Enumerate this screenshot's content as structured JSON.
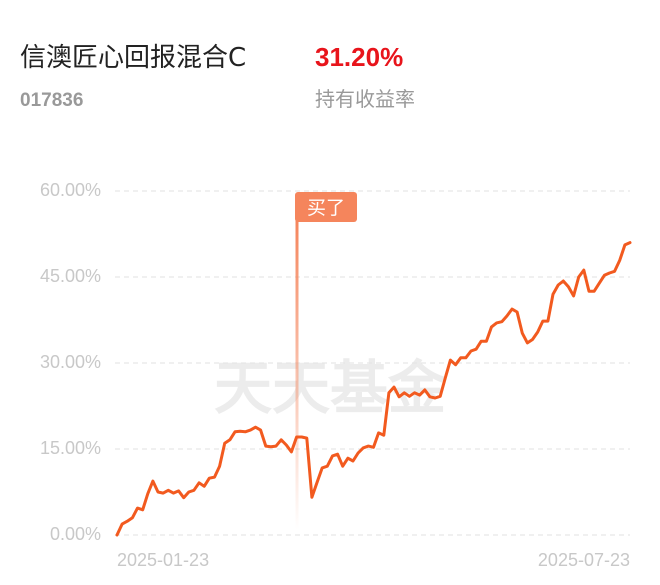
{
  "header": {
    "title": "信澳匠心回报混合C",
    "code": "017836",
    "return_value": "31.20%",
    "return_label": "持有收益率"
  },
  "chart_data": {
    "type": "line",
    "watermark": "天天基金",
    "annotation": "买了",
    "categories": [
      "2025-01-23",
      null,
      null,
      null,
      null,
      null,
      null,
      null,
      null,
      null,
      null,
      null,
      null,
      null,
      null,
      null,
      null,
      null,
      null,
      null,
      null,
      null,
      null,
      null,
      null,
      null,
      null,
      null,
      null,
      null,
      null,
      null,
      null,
      null,
      null,
      null,
      null,
      null,
      null,
      null,
      null,
      null,
      null,
      null,
      null,
      null,
      null,
      null,
      null,
      null,
      null,
      null,
      null,
      null,
      null,
      null,
      null,
      null,
      null,
      null,
      null,
      null,
      null,
      null,
      null,
      null,
      null,
      null,
      null,
      null,
      null,
      null,
      null,
      null,
      null,
      null,
      null,
      null,
      null,
      null,
      null,
      null,
      null,
      null,
      null,
      null,
      null,
      null,
      null,
      null,
      null,
      null,
      null,
      null,
      null,
      null,
      null,
      null,
      null,
      null,
      "2025-07-23"
    ],
    "series": [
      {
        "color": "#f25a1f",
        "values": [
          0,
          1.9,
          2.4,
          3,
          4.7,
          4.4,
          7.2,
          9.4,
          7.5,
          7.3,
          7.8,
          7.3,
          7.7,
          6.5,
          7.5,
          7.8,
          9.1,
          8.5,
          9.9,
          10.1,
          12,
          16,
          16.6,
          18,
          18.1,
          18,
          18.3,
          18.8,
          18.3,
          15.5,
          15.4,
          15.5,
          16.6,
          15.7,
          14.5,
          17.1,
          17.1,
          16.9,
          6.6,
          9.2,
          11.7,
          12,
          13.8,
          14.1,
          12,
          13.4,
          12.9,
          14.3,
          15.2,
          15.5,
          15.3,
          17.8,
          17.4,
          24.8,
          25.8,
          24.1,
          24.8,
          24.2,
          24.8,
          24.4,
          25.3,
          24.1,
          23.9,
          24.2,
          27.4,
          30.5,
          29.7,
          30.9,
          30.9,
          32.1,
          32.4,
          33.8,
          33.8,
          36.3,
          37,
          37.2,
          38.2,
          39.4,
          38.9,
          35.2,
          33.5,
          34.1,
          35.4,
          37.3,
          37.3,
          42,
          43.6,
          44.3,
          43.3,
          41.7,
          45,
          46.2,
          42.5,
          42.5,
          43.9,
          45.3,
          45.7,
          46,
          47.9,
          50.6,
          51
        ]
      }
    ],
    "ylim": [
      0,
      60
    ],
    "yticks": [
      {
        "value": 0,
        "label": "0.00%"
      },
      {
        "value": 15,
        "label": "15.00%"
      },
      {
        "value": 30,
        "label": "30.00%"
      },
      {
        "value": 45,
        "label": "45.00%"
      },
      {
        "value": 60,
        "label": "60.00%"
      }
    ],
    "grid": true
  }
}
